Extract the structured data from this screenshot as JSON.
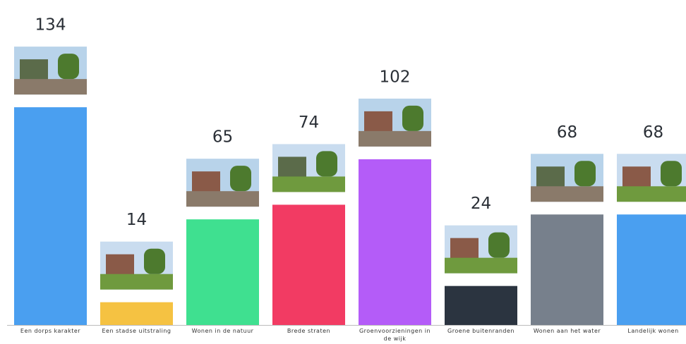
{
  "chart_data": {
    "type": "bar",
    "categories": [
      "Een dorps karakter",
      "Een stadse uitstraling",
      "Wonen in de natuur",
      "Brede straten",
      "Groenvoorzieningen in de wijk",
      "Groene buitenranden",
      "Wonen aan het water",
      "Landelijk wonen"
    ],
    "values": [
      134,
      14,
      65,
      74,
      102,
      24,
      68,
      68
    ],
    "colors": [
      "#4a9ff0",
      "#f5c242",
      "#3fe090",
      "#f23b63",
      "#b45cf8",
      "#2b3440",
      "#77808c",
      "#4a9ff0"
    ]
  }
}
